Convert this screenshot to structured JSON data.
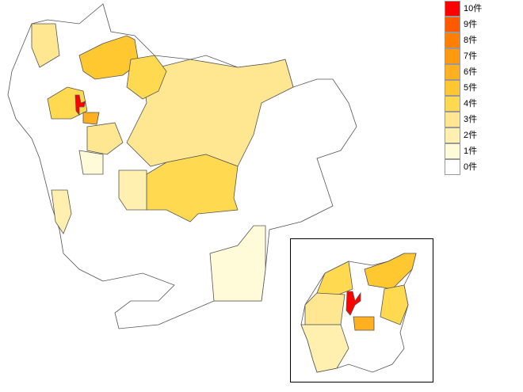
{
  "legend": [
    {
      "value": 10,
      "label": "10件",
      "color": "#ff0000"
    },
    {
      "value": 9,
      "label": "9件",
      "color": "#ff5a00"
    },
    {
      "value": 8,
      "label": "8件",
      "color": "#ff8000"
    },
    {
      "value": 7,
      "label": "7件",
      "color": "#ff9a10"
    },
    {
      "value": 6,
      "label": "6件",
      "color": "#ffb020"
    },
    {
      "value": 5,
      "label": "5件",
      "color": "#ffc830"
    },
    {
      "value": 4,
      "label": "4件",
      "color": "#ffda50"
    },
    {
      "value": 3,
      "label": "3件",
      "color": "#ffe690"
    },
    {
      "value": 2,
      "label": "2件",
      "color": "#fff0b0"
    },
    {
      "value": 1,
      "label": "1件",
      "color": "#fffad8"
    },
    {
      "value": 0,
      "label": "0件",
      "color": "#ffffff"
    }
  ],
  "regions": [
    {
      "value": 3
    },
    {
      "value": 4
    },
    {
      "value": 5
    },
    {
      "value": 4
    },
    {
      "value": 3
    },
    {
      "value": 4
    },
    {
      "value": 10
    },
    {
      "value": 6
    },
    {
      "value": 1
    },
    {
      "value": 2
    },
    {
      "value": 2
    },
    {
      "value": 3
    },
    {
      "value": 1
    }
  ],
  "inset_regions": [
    {
      "value": 4
    },
    {
      "value": 5
    },
    {
      "value": 3
    },
    {
      "value": 2
    },
    {
      "value": 4
    },
    {
      "value": 10
    },
    {
      "value": 6
    }
  ]
}
